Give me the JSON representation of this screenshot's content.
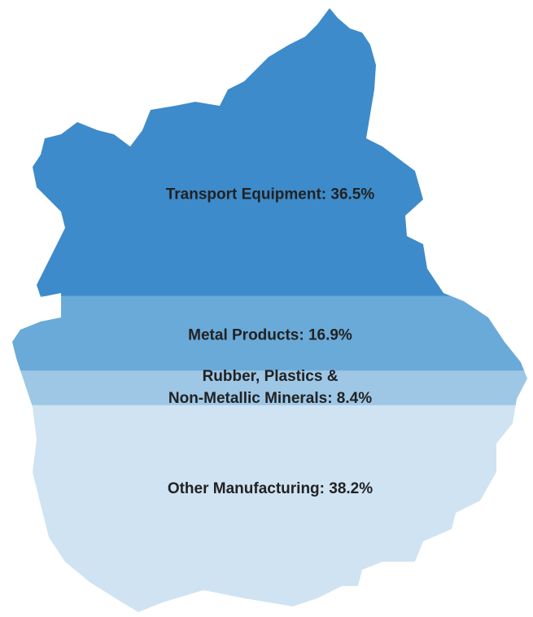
{
  "chart_data": {
    "type": "pictorial-stack",
    "value_labels": [
      "Transport Equipment: 36.5%",
      "Metal Products: 16.9%",
      "Rubber, Plastics &\nNon-Metallic Minerals: 8.4%",
      "Other Manufacturing: 38.2%"
    ],
    "values": [
      36.5,
      16.9,
      8.4,
      38.2
    ],
    "colors": [
      "#3d8bca",
      "#6aaad8",
      "#9ec7e6",
      "#cfe3f2"
    ]
  }
}
